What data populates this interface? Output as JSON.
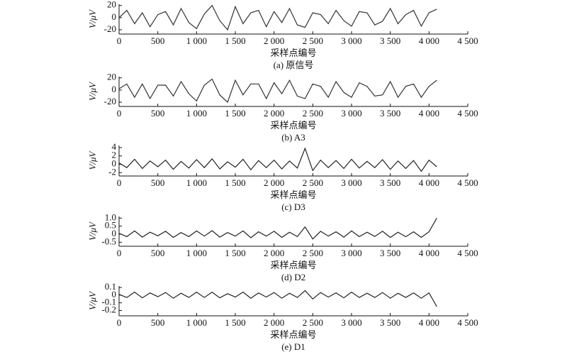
{
  "chart_data": [
    {
      "type": "line",
      "caption": "(a) 原信号",
      "xlabel": "采样点编号",
      "ylabel": "V/μV",
      "color": "#333333",
      "x": [
        0,
        100,
        200,
        300,
        400,
        500,
        600,
        700,
        800,
        900,
        1000,
        1100,
        1200,
        1300,
        1400,
        1500,
        1600,
        1700,
        1800,
        1900,
        2000,
        2100,
        2200,
        2300,
        2400,
        2500,
        2600,
        2700,
        2800,
        2900,
        3000,
        3100,
        3200,
        3300,
        3400,
        3500,
        3600,
        3700,
        3800,
        3900,
        4000,
        4100
      ],
      "values": [
        0,
        12,
        -10,
        8,
        -15,
        5,
        10,
        -12,
        15,
        -8,
        -18,
        6,
        20,
        -5,
        -20,
        18,
        -10,
        8,
        12,
        -15,
        10,
        -8,
        15,
        -12,
        -16,
        8,
        5,
        -10,
        12,
        -5,
        -14,
        10,
        8,
        -12,
        -6,
        15,
        -10,
        5,
        12,
        -14,
        8,
        14
      ],
      "xlim": [
        0,
        4500
      ],
      "ylim": [
        -27,
        22
      ],
      "xticks": [
        0,
        500,
        {
          "value": 1000,
          "label": "1 000"
        },
        {
          "value": 1500,
          "label": "1 500"
        },
        {
          "value": 2000,
          "label": "2 000"
        },
        {
          "value": 2500,
          "label": "2 500"
        },
        {
          "value": 3000,
          "label": "3 000"
        },
        {
          "value": 3500,
          "label": "3 500"
        },
        {
          "value": 4000,
          "label": "4 000"
        },
        {
          "value": 4500,
          "label": "4 500"
        }
      ],
      "yticks": [
        -20,
        0,
        20
      ]
    },
    {
      "type": "line",
      "caption": "(b) A3",
      "xlabel": "采样点编号",
      "ylabel": "V/μV",
      "color": "#333333",
      "x": [
        0,
        100,
        200,
        300,
        400,
        500,
        600,
        700,
        800,
        900,
        1000,
        1100,
        1200,
        1300,
        1400,
        1500,
        1600,
        1700,
        1800,
        1900,
        2000,
        2100,
        2200,
        2300,
        2400,
        2500,
        2600,
        2700,
        2800,
        2900,
        3000,
        3100,
        3200,
        3300,
        3400,
        3500,
        3600,
        3700,
        3800,
        3900,
        4000,
        4100
      ],
      "values": [
        2,
        10,
        -12,
        10,
        -14,
        8,
        8,
        -10,
        14,
        -6,
        -18,
        8,
        18,
        -8,
        -20,
        16,
        -8,
        10,
        10,
        -14,
        12,
        -6,
        16,
        -10,
        -14,
        10,
        6,
        -12,
        14,
        -4,
        -12,
        12,
        6,
        -10,
        -8,
        14,
        -12,
        6,
        10,
        -12,
        6,
        16
      ],
      "xlim": [
        0,
        4500
      ],
      "ylim": [
        -27,
        22
      ],
      "xticks": [
        0,
        500,
        {
          "value": 1000,
          "label": "1 000"
        },
        {
          "value": 1500,
          "label": "1 500"
        },
        {
          "value": 2000,
          "label": "2 000"
        },
        {
          "value": 2500,
          "label": "2 500"
        },
        {
          "value": 3000,
          "label": "3 000"
        },
        {
          "value": 3500,
          "label": "3 500"
        },
        {
          "value": 4000,
          "label": "4 000"
        },
        {
          "value": 4500,
          "label": "4 500"
        }
      ],
      "yticks": [
        -20,
        0,
        20
      ]
    },
    {
      "type": "line",
      "caption": "(c) D3",
      "xlabel": "采样点编号",
      "ylabel": "V/μV",
      "color": "#222222",
      "x": [
        0,
        100,
        200,
        300,
        400,
        500,
        600,
        700,
        800,
        900,
        1000,
        1100,
        1200,
        1300,
        1400,
        1500,
        1600,
        1700,
        1800,
        1900,
        2000,
        2100,
        2200,
        2300,
        2400,
        2500,
        2600,
        2700,
        2800,
        2900,
        3000,
        3100,
        3200,
        3300,
        3400,
        3500,
        3600,
        3700,
        3800,
        3900,
        4000,
        4100
      ],
      "values": [
        0.3,
        -0.8,
        1.2,
        -1,
        0.8,
        -0.6,
        1,
        -1.2,
        0.7,
        -0.9,
        1.1,
        -0.8,
        1.3,
        -1.1,
        0.6,
        -0.7,
        1.2,
        -1.3,
        0.9,
        -0.8,
        1,
        -1.1,
        0.8,
        -0.9,
        3.8,
        -1.5,
        1,
        -0.8,
        0.9,
        -1,
        1.2,
        -0.9,
        0.7,
        -0.8,
        1.1,
        -1.2,
        0.8,
        -1,
        0.9,
        -1.7,
        1,
        -0.6
      ],
      "xlim": [
        0,
        4500
      ],
      "ylim": [
        -2.8,
        4.5
      ],
      "xticks": [
        0,
        500,
        {
          "value": 1000,
          "label": "1 000"
        },
        {
          "value": 1500,
          "label": "1 500"
        },
        {
          "value": 2000,
          "label": "2 000"
        },
        {
          "value": 2500,
          "label": "2 500"
        },
        {
          "value": 3000,
          "label": "3 000"
        },
        {
          "value": 3500,
          "label": "3 500"
        },
        {
          "value": 4000,
          "label": "4 000"
        },
        {
          "value": 4500,
          "label": "4 500"
        }
      ],
      "yticks": [
        -2,
        0,
        2,
        4
      ]
    },
    {
      "type": "line",
      "caption": "(d) D2",
      "xlabel": "采样点编号",
      "ylabel": "V/μV",
      "color": "#222222",
      "x": [
        0,
        100,
        200,
        300,
        400,
        500,
        600,
        700,
        800,
        900,
        1000,
        1100,
        1200,
        1300,
        1400,
        1500,
        1600,
        1700,
        1800,
        1900,
        2000,
        2100,
        2200,
        2300,
        2400,
        2500,
        2600,
        2700,
        2800,
        2900,
        3000,
        3100,
        3200,
        3300,
        3400,
        3500,
        3600,
        3700,
        3800,
        3900,
        4000,
        4100
      ],
      "values": [
        0.05,
        -0.15,
        0.2,
        -0.18,
        0.12,
        -0.1,
        0.18,
        -0.2,
        0.1,
        -0.15,
        0.2,
        -0.12,
        0.22,
        -0.18,
        0.1,
        -0.12,
        0.2,
        -0.22,
        0.15,
        -0.12,
        0.18,
        -0.2,
        0.12,
        -0.15,
        0.45,
        -0.3,
        0.18,
        -0.12,
        0.15,
        -0.18,
        0.2,
        -0.15,
        0.12,
        -0.14,
        0.18,
        -0.2,
        0.12,
        -0.16,
        0.15,
        -0.2,
        0.15,
        1.0
      ],
      "xlim": [
        0,
        4500
      ],
      "ylim": [
        -0.75,
        1.1
      ],
      "xticks": [
        0,
        500,
        {
          "value": 1000,
          "label": "1 000"
        },
        {
          "value": 1500,
          "label": "1 500"
        },
        {
          "value": 2000,
          "label": "2 000"
        },
        {
          "value": 2500,
          "label": "2 500"
        },
        {
          "value": 3000,
          "label": "3 000"
        },
        {
          "value": 3500,
          "label": "3 500"
        },
        {
          "value": 4000,
          "label": "4 000"
        },
        {
          "value": 4500,
          "label": "4 500"
        }
      ],
      "yticks": [
        -0.5,
        0,
        0.5,
        {
          "value": 1,
          "label": "1.0"
        }
      ]
    },
    {
      "type": "line",
      "caption": "(e) D1",
      "xlabel": "采样点编号",
      "ylabel": "V/μV",
      "color": "#222222",
      "x": [
        0,
        100,
        200,
        300,
        400,
        500,
        600,
        700,
        800,
        900,
        1000,
        1100,
        1200,
        1300,
        1400,
        1500,
        1600,
        1700,
        1800,
        1900,
        2000,
        2100,
        2200,
        2300,
        2400,
        2500,
        2600,
        2700,
        2800,
        2900,
        3000,
        3100,
        3200,
        3300,
        3400,
        3500,
        3600,
        3700,
        3800,
        3900,
        4000,
        4100
      ],
      "values": [
        0.01,
        -0.03,
        0.04,
        -0.035,
        0.03,
        -0.02,
        0.035,
        -0.04,
        0.025,
        -0.03,
        0.04,
        -0.03,
        0.04,
        -0.035,
        0.02,
        -0.025,
        0.04,
        -0.04,
        0.03,
        -0.025,
        0.035,
        -0.04,
        0.025,
        -0.03,
        0.06,
        -0.05,
        0.035,
        -0.025,
        0.03,
        -0.035,
        0.04,
        -0.03,
        0.025,
        -0.03,
        0.035,
        -0.04,
        0.025,
        -0.03,
        0.03,
        -0.04,
        0.03,
        -0.15
      ],
      "xlim": [
        0,
        4500
      ],
      "ylim": [
        -0.27,
        0.12
      ],
      "xticks": [
        0,
        500,
        {
          "value": 1000,
          "label": "1 000"
        },
        {
          "value": 1500,
          "label": "1 500"
        },
        {
          "value": 2000,
          "label": "2 000"
        },
        {
          "value": 2500,
          "label": "2 500"
        },
        {
          "value": 3000,
          "label": "3 000"
        },
        {
          "value": 3500,
          "label": "3 500"
        },
        {
          "value": 4000,
          "label": "4 000"
        },
        {
          "value": 4500,
          "label": "4 500"
        }
      ],
      "yticks": [
        -0.2,
        -0.1,
        0,
        0.1
      ]
    }
  ]
}
